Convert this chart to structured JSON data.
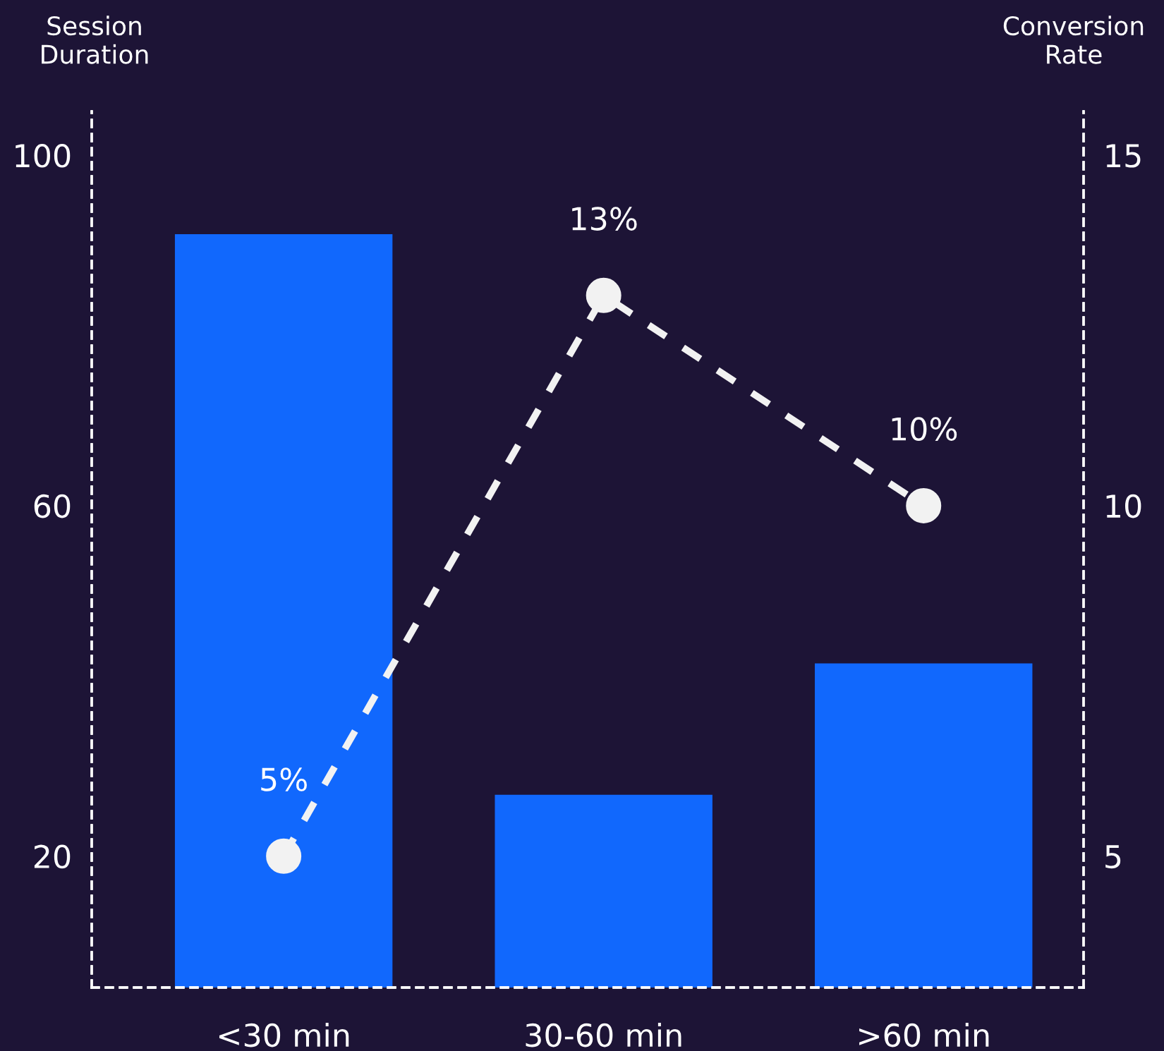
{
  "chart_data": {
    "type": "bar",
    "ylabel": "Session Duration",
    "y2label": "Conversion Rate",
    "categories": [
      "<30 min",
      "30-60 min",
      ">60 min"
    ],
    "series": [
      {
        "color": "#1168fd",
        "values": [
          91,
          27,
          42
        ]
      },
      {
        "type": "line",
        "axis": "y2",
        "color": "#f2f2f2",
        "values": [
          5,
          13,
          10
        ],
        "value_labels": [
          "5%",
          "13%",
          "10%"
        ]
      }
    ],
    "ylim": [
      5,
      105
    ],
    "yticks": [
      20,
      60,
      100
    ],
    "y2lim": [
      3.125,
      15.625
    ],
    "y2ticks": [
      5,
      10,
      15
    ],
    "marker": "circle",
    "line_style": "dashed",
    "grid": false,
    "legend": false
  }
}
